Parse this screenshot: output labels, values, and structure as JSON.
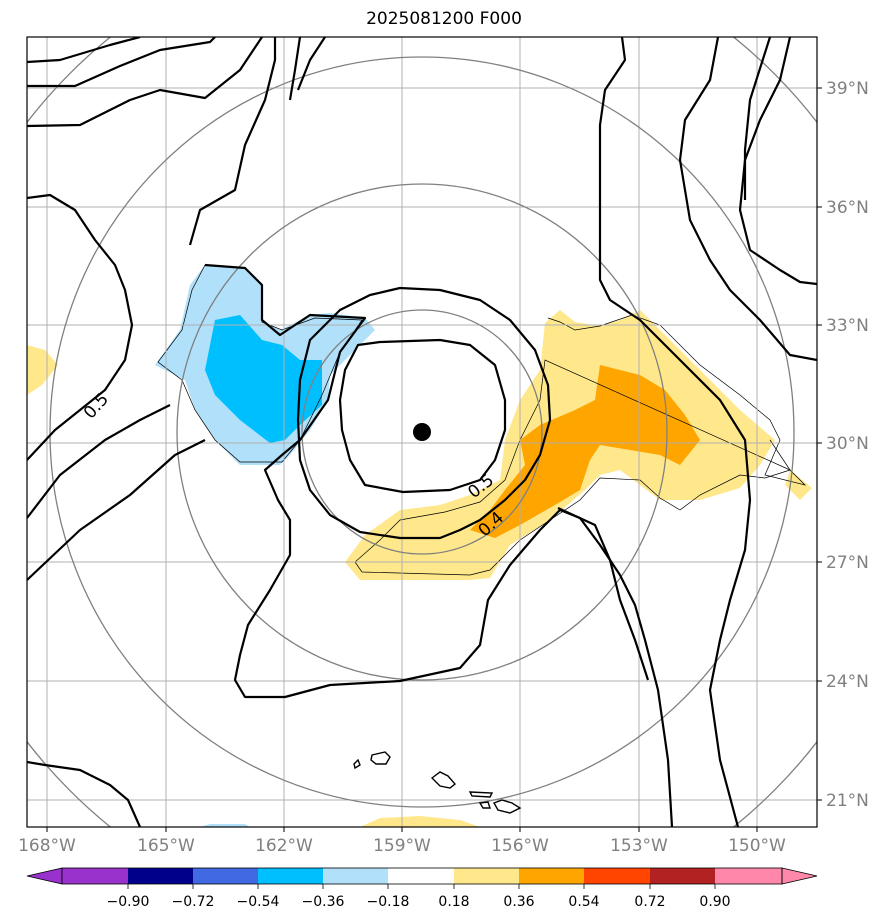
{
  "title": "2025081200 F000",
  "map": {
    "lon_ticks": [
      "168°W",
      "165°W",
      "162°W",
      "159°W",
      "156°W",
      "153°W",
      "150°W"
    ],
    "lat_ticks": [
      "39°N",
      "36°N",
      "33°N",
      "30°N",
      "27°N",
      "24°N",
      "21°N"
    ],
    "storm_center": {
      "lat": 30.3,
      "lon": 158.5,
      "hemi": "W"
    },
    "contour_labels": [
      "0.5",
      "0.5",
      "0.4"
    ]
  },
  "colorbar": {
    "labels": [
      "−0.90",
      "−0.72",
      "−0.54",
      "−0.36",
      "−0.18",
      "0.18",
      "0.36",
      "0.54",
      "0.72",
      "0.90"
    ],
    "colors": [
      "#9932cc",
      "#00008b",
      "#4169e1",
      "#00bfff",
      "#b0e0fa",
      "#ffffff",
      "#ffe88c",
      "#ffa500",
      "#ff4500",
      "#b22222",
      "#ff88aa"
    ],
    "extend": "both"
  },
  "colors": {
    "neg_light": "#b0e0fa",
    "neg_mid": "#00bfff",
    "pos_light": "#ffe88c",
    "pos_mid": "#ffa500",
    "grid": "#b0b0b0",
    "range_rings": "#808080"
  }
}
